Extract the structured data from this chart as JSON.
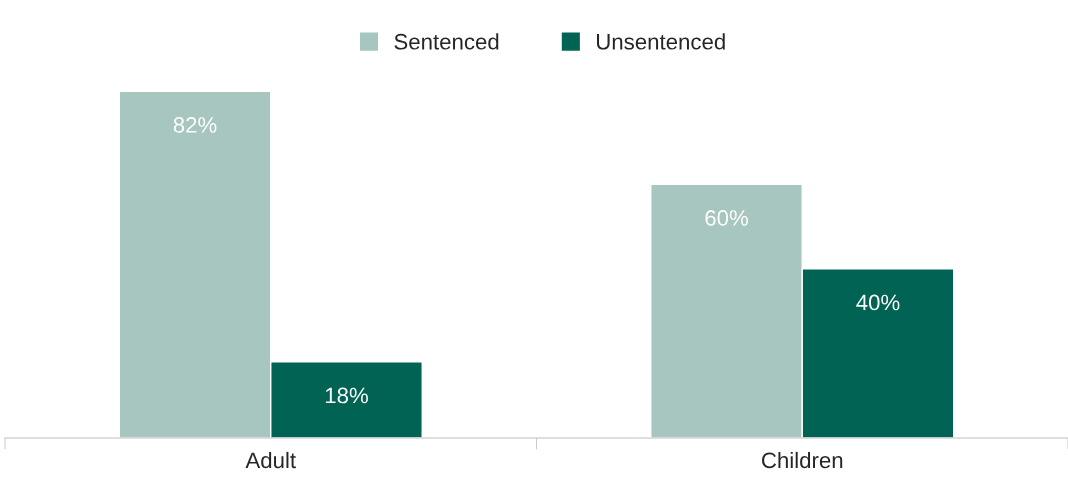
{
  "chart_data": {
    "type": "bar",
    "categories": [
      "Adult",
      "Children"
    ],
    "series": [
      {
        "name": "Sentenced",
        "color": "#a7c6bf",
        "values": [
          82,
          60
        ],
        "value_labels": [
          "82%",
          "60%"
        ]
      },
      {
        "name": "Unsentenced",
        "color": "#006354",
        "values": [
          18,
          40
        ],
        "value_labels": [
          "18%",
          "40%"
        ]
      }
    ],
    "legend": "top",
    "grid": false
  }
}
